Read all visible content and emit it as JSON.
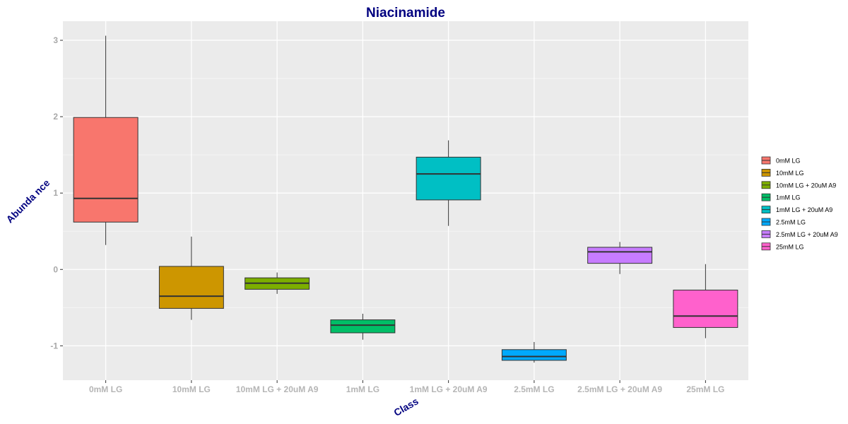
{
  "chart_data": {
    "type": "boxplot",
    "title": "Niacinamide",
    "xlabel": "Class",
    "ylabel": "Abunda nce",
    "ylim": [
      -1.45,
      3.25
    ],
    "yticks": [
      "-1",
      "0",
      "1",
      "2",
      "3"
    ],
    "grid": true,
    "legend_position": "right",
    "categories": [
      "0mM LG",
      "10mM LG",
      "10mM LG + 20uM A9",
      "1mM LG",
      "1mM LG + 20uM A9",
      "2.5mM LG",
      "2.5mM LG + 20uM A9",
      "25mM LG"
    ],
    "boxes": [
      {
        "name": "0mM LG",
        "min": 0.32,
        "q1": 0.62,
        "median": 0.93,
        "q3": 1.99,
        "max": 3.06,
        "color": "#F8766D"
      },
      {
        "name": "10mM LG",
        "min": -0.66,
        "q1": -0.51,
        "median": -0.35,
        "q3": 0.04,
        "max": 0.43,
        "color": "#CD9600"
      },
      {
        "name": "10mM LG + 20uM A9",
        "min": -0.32,
        "q1": -0.26,
        "median": -0.18,
        "q3": -0.11,
        "max": -0.04,
        "color": "#7CAE00"
      },
      {
        "name": "1mM LG",
        "min": -0.92,
        "q1": -0.83,
        "median": -0.73,
        "q3": -0.66,
        "max": -0.58,
        "color": "#00BE67"
      },
      {
        "name": "1mM LG + 20uM A9",
        "min": 0.57,
        "q1": 0.91,
        "median": 1.25,
        "q3": 1.47,
        "max": 1.69,
        "color": "#00BFC4"
      },
      {
        "name": "2.5mM LG",
        "min": -1.22,
        "q1": -1.19,
        "median": -1.14,
        "q3": -1.05,
        "max": -0.95,
        "color": "#00A9FF"
      },
      {
        "name": "2.5mM LG + 20uM A9",
        "min": -0.06,
        "q1": 0.08,
        "median": 0.23,
        "q3": 0.29,
        "max": 0.36,
        "color": "#C77CFF"
      },
      {
        "name": "25mM LG",
        "min": -0.9,
        "q1": -0.76,
        "median": -0.61,
        "q3": -0.27,
        "max": 0.07,
        "color": "#FF61CC"
      }
    ]
  }
}
